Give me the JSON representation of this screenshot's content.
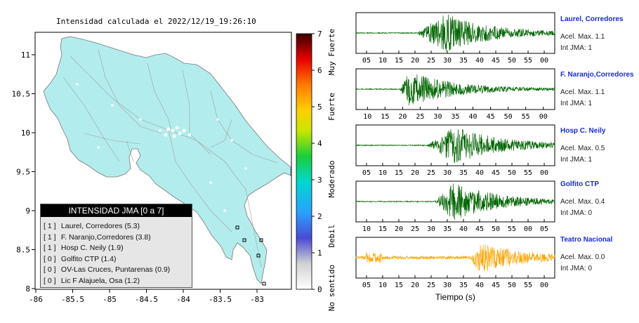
{
  "map": {
    "title": "Intensidad calculada el 2022/12/19_19:26:10",
    "lon_ticks": [
      "-86",
      "-85.5",
      "-85",
      "-84.5",
      "-84",
      "-83.5",
      "-83"
    ],
    "lat_ticks": [
      "11",
      "10.5",
      "10",
      "9.5",
      "9",
      "8.5",
      "8"
    ],
    "land_color": "#b3eced",
    "colorbar": {
      "ticks": [
        "7",
        "6",
        "5",
        "4",
        "3",
        "2",
        "1",
        "0"
      ],
      "categories": [
        "Muy Fuerte",
        "Fuerte",
        "Moderado",
        "Debil",
        "No sentido"
      ]
    }
  },
  "legend": {
    "title": "INTENSIDAD JMA [0 a 7]",
    "rows": [
      {
        "level": "[ 1 ]",
        "label": "Laurel, Corredores (5.3)"
      },
      {
        "level": "[ 1 ]",
        "label": "F. Naranjo,Corredores (3.8)"
      },
      {
        "level": "[ 1 ]",
        "label": "Hosp C. Neily (1.9)"
      },
      {
        "level": "[ 0 ]",
        "label": "Golfito CTP (1.4)"
      },
      {
        "level": "[ 0 ]",
        "label": "OV-Las Cruces, Puntarenas (0.9)"
      },
      {
        "level": "[ 0 ]",
        "label": "Lic F Alajuela, Osa (1.2)"
      }
    ]
  },
  "seismograms": {
    "xlabel": "Tiempo (s)",
    "panels": [
      {
        "name": "Laurel, Corredores",
        "acel": "Acel. Max. 1.1",
        "int": "Int JMA: 1",
        "color": "#006400",
        "onset": 0.31,
        "peak": 0.45,
        "amp": 1.0,
        "ticks": [
          "05",
          "10",
          "15",
          "20",
          "25",
          "30",
          "35",
          "40",
          "45",
          "50",
          "55",
          "00"
        ]
      },
      {
        "name": "F. Naranjo,Corredores",
        "acel": "Acel. Max. 1.1",
        "int": "Int JMA: 1",
        "color": "#006400",
        "onset": 0.22,
        "peak": 0.27,
        "amp": 0.9,
        "ticks": [
          "10",
          "15",
          "20",
          "25",
          "30",
          "35",
          "40",
          "45",
          "50",
          "55",
          "00"
        ]
      },
      {
        "name": "Hosp C. Neily",
        "acel": "Acel. Max. 0.5",
        "int": "Int JMA: 1",
        "color": "#006400",
        "onset": 0.36,
        "peak": 0.5,
        "amp": 1.0,
        "ticks": [
          "05",
          "10",
          "15",
          "20",
          "25",
          "30",
          "35",
          "40",
          "45",
          "50",
          "55",
          "00"
        ]
      },
      {
        "name": "Golfito CTP",
        "acel": "Acel. Max. 0.4",
        "int": "Int JMA: 0",
        "color": "#006400",
        "onset": 0.4,
        "peak": 0.49,
        "amp": 1.0,
        "ticks": [
          "10",
          "15",
          "20",
          "25",
          "30",
          "35",
          "40",
          "45",
          "50",
          "55",
          "00",
          "05"
        ]
      },
      {
        "name": "Teatro Nacional",
        "acel": "Acel. Max. 0.0",
        "int": "Int JMA: 0",
        "color": "#ffa500",
        "onset": 0.58,
        "peak": 0.61,
        "amp": 0.85,
        "ticks": [
          "05",
          "10",
          "15",
          "20",
          "25",
          "30",
          "35",
          "40",
          "45",
          "50",
          "55",
          "00"
        ]
      }
    ]
  },
  "chart_data": [
    {
      "type": "heatmap",
      "title": "Intensidad calculada el 2022/12/19_19:26:10",
      "xlabel": "",
      "ylabel": "",
      "xlim": [
        -86,
        -82.6
      ],
      "ylim": [
        8,
        11.3
      ],
      "colorbar_range": [
        0,
        7
      ],
      "legend_title": "INTENSIDAD JMA [0 a 7]",
      "stations": [
        {
          "name": "Laurel, Corredores",
          "jma": 1,
          "value": 5.3
        },
        {
          "name": "F. Naranjo,Corredores",
          "jma": 1,
          "value": 3.8
        },
        {
          "name": "Hosp C. Neily",
          "jma": 1,
          "value": 1.9
        },
        {
          "name": "Golfito CTP",
          "jma": 0,
          "value": 1.4
        },
        {
          "name": "OV-Las Cruces, Puntarenas",
          "jma": 0,
          "value": 0.9
        },
        {
          "name": "Lic F Alajuela, Osa",
          "jma": 0,
          "value": 1.2
        }
      ]
    },
    {
      "type": "line",
      "title": "",
      "xlabel": "Tiempo (s)",
      "series": [
        {
          "name": "Laurel, Corredores",
          "peak_acceleration": 1.1,
          "jma": 1
        },
        {
          "name": "F. Naranjo,Corredores",
          "peak_acceleration": 1.1,
          "jma": 1
        },
        {
          "name": "Hosp C. Neily",
          "peak_acceleration": 0.5,
          "jma": 1
        },
        {
          "name": "Golfito CTP",
          "peak_acceleration": 0.4,
          "jma": 0
        },
        {
          "name": "Teatro Nacional",
          "peak_acceleration": 0.0,
          "jma": 0
        }
      ]
    }
  ]
}
